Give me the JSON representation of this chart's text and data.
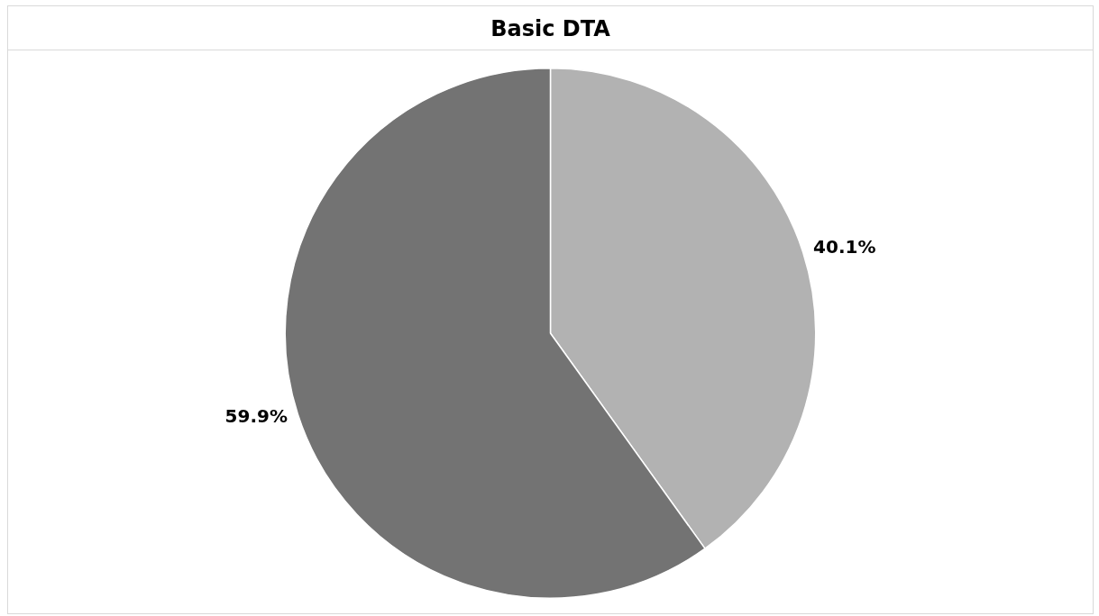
{
  "chart_data": {
    "type": "pie",
    "title": "Basic DTA",
    "categories": [
      null,
      null
    ],
    "values": [
      40.1,
      59.9
    ],
    "colors": [
      "#b2b2b2",
      "#737373"
    ],
    "value_labels": [
      "40.1%",
      "59.9%"
    ],
    "legend": false
  }
}
